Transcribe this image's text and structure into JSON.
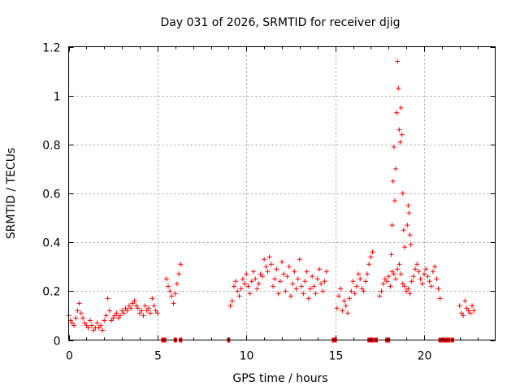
{
  "chart_data": {
    "type": "scatter",
    "title": "Day 031 of 2026, SRMTID for receiver djig",
    "xlabel": "GPS time / hours",
    "ylabel": "SRMTID / TECUs",
    "xlim": [
      0,
      24
    ],
    "ylim": [
      0,
      1.2
    ],
    "xticks": [
      0,
      5,
      10,
      15,
      20
    ],
    "xtick_labels": [
      "0",
      "5",
      "10",
      "15",
      "20"
    ],
    "yticks": [
      0,
      0.2,
      0.4,
      0.6,
      0.8,
      1.0,
      1.2
    ],
    "ytick_labels": [
      "0",
      "0.2",
      "0.4",
      "0.6",
      "0.8",
      "1",
      "1.2"
    ],
    "grid": true,
    "marker": "+",
    "color": "#ff0000",
    "series": [
      {
        "name": "srmtid",
        "x": [
          0.0,
          0.1,
          0.2,
          0.3,
          0.4,
          0.5,
          0.6,
          0.7,
          0.8,
          0.9,
          1.0,
          1.1,
          1.2,
          1.3,
          1.4,
          1.5,
          1.6,
          1.7,
          1.8,
          1.9,
          2.0,
          2.1,
          2.2,
          2.3,
          2.4,
          2.5,
          2.6,
          2.7,
          2.8,
          2.9,
          3.0,
          3.1,
          3.2,
          3.3,
          3.4,
          3.5,
          3.6,
          3.7,
          3.8,
          3.9,
          4.0,
          4.1,
          4.2,
          4.3,
          4.4,
          4.5,
          4.6,
          4.7,
          4.8,
          4.9,
          5.0,
          5.5,
          5.6,
          5.7,
          5.8,
          5.9,
          6.0,
          6.1,
          6.2,
          6.3,
          9.1,
          9.2,
          9.3,
          9.4,
          9.5,
          9.6,
          9.7,
          9.8,
          9.9,
          10.0,
          10.1,
          10.2,
          10.3,
          10.4,
          10.5,
          10.6,
          10.7,
          10.8,
          10.9,
          11.0,
          11.1,
          11.2,
          11.3,
          11.4,
          11.5,
          11.6,
          11.7,
          11.8,
          11.9,
          12.0,
          12.1,
          12.2,
          12.3,
          12.4,
          12.5,
          12.6,
          12.7,
          12.8,
          12.9,
          13.0,
          13.1,
          13.2,
          13.3,
          13.4,
          13.5,
          13.6,
          13.7,
          13.8,
          13.9,
          14.0,
          14.1,
          14.2,
          14.3,
          14.4,
          14.5,
          15.1,
          15.2,
          15.3,
          15.4,
          15.5,
          15.6,
          15.7,
          15.8,
          15.9,
          16.0,
          16.1,
          16.2,
          16.3,
          16.4,
          16.5,
          16.6,
          16.7,
          16.8,
          16.9,
          17.0,
          17.1,
          17.5,
          17.6,
          17.7,
          17.8,
          17.9,
          18.0,
          18.1,
          18.2,
          18.3,
          18.4,
          18.5,
          18.6,
          18.7,
          18.8,
          18.9,
          19.0,
          19.1,
          19.2,
          19.3,
          19.4,
          19.5,
          19.6,
          19.7,
          19.8,
          19.9,
          20.0,
          20.1,
          20.2,
          20.3,
          20.4,
          20.5,
          20.6,
          20.7,
          20.8,
          20.9,
          22.0,
          22.1,
          22.2,
          22.3,
          22.4,
          22.5,
          22.6,
          22.7,
          22.8,
          18.15,
          18.2,
          18.25,
          18.3,
          18.35,
          18.4,
          18.45,
          18.5,
          18.55,
          18.6,
          18.65,
          18.7,
          18.75,
          18.8,
          18.85,
          18.9,
          19.05,
          19.1,
          19.15,
          19.2,
          19.25
        ],
        "y": [
          0.1,
          0.08,
          0.07,
          0.06,
          0.09,
          0.12,
          0.15,
          0.11,
          0.09,
          0.07,
          0.06,
          0.05,
          0.08,
          0.06,
          0.04,
          0.05,
          0.07,
          0.05,
          0.06,
          0.04,
          0.08,
          0.1,
          0.17,
          0.12,
          0.08,
          0.09,
          0.1,
          0.11,
          0.09,
          0.1,
          0.12,
          0.11,
          0.13,
          0.12,
          0.14,
          0.13,
          0.15,
          0.16,
          0.14,
          0.13,
          0.11,
          0.12,
          0.1,
          0.14,
          0.12,
          0.13,
          0.11,
          0.17,
          0.14,
          0.12,
          0.11,
          0.25,
          0.22,
          0.2,
          0.18,
          0.15,
          0.19,
          0.23,
          0.27,
          0.31,
          0.14,
          0.16,
          0.22,
          0.24,
          0.2,
          0.18,
          0.21,
          0.25,
          0.23,
          0.27,
          0.22,
          0.19,
          0.24,
          0.28,
          0.25,
          0.21,
          0.23,
          0.27,
          0.26,
          0.33,
          0.3,
          0.28,
          0.34,
          0.31,
          0.22,
          0.25,
          0.29,
          0.19,
          0.24,
          0.32,
          0.27,
          0.2,
          0.26,
          0.3,
          0.18,
          0.23,
          0.28,
          0.21,
          0.25,
          0.33,
          0.22,
          0.19,
          0.24,
          0.28,
          0.17,
          0.21,
          0.26,
          0.22,
          0.19,
          0.25,
          0.29,
          0.23,
          0.2,
          0.24,
          0.28,
          0.13,
          0.18,
          0.21,
          0.12,
          0.16,
          0.14,
          0.11,
          0.17,
          0.2,
          0.24,
          0.19,
          0.22,
          0.27,
          0.25,
          0.21,
          0.2,
          0.24,
          0.27,
          0.31,
          0.34,
          0.36,
          0.18,
          0.2,
          0.23,
          0.25,
          0.24,
          0.26,
          0.22,
          0.28,
          0.27,
          0.25,
          0.29,
          0.31,
          0.27,
          0.23,
          0.22,
          0.2,
          0.21,
          0.19,
          0.24,
          0.26,
          0.29,
          0.31,
          0.28,
          0.25,
          0.23,
          0.27,
          0.29,
          0.26,
          0.24,
          0.22,
          0.28,
          0.3,
          0.25,
          0.21,
          0.17,
          0.14,
          0.11,
          0.1,
          0.16,
          0.13,
          0.12,
          0.11,
          0.14,
          0.12,
          0.35,
          0.47,
          0.65,
          0.79,
          0.57,
          0.7,
          0.93,
          1.14,
          1.03,
          0.86,
          0.81,
          0.95,
          0.84,
          0.6,
          0.45,
          0.38,
          0.47,
          0.55,
          0.52,
          0.43,
          0.39
        ]
      }
    ],
    "zero_markers_x": [
      5.3,
      5.4,
      6.0,
      6.3,
      9.0,
      14.9,
      15.0,
      16.9,
      17.0,
      17.1,
      17.3,
      17.9,
      18.0,
      20.9,
      21.0,
      21.1,
      21.2,
      21.3,
      21.4,
      21.6
    ]
  }
}
